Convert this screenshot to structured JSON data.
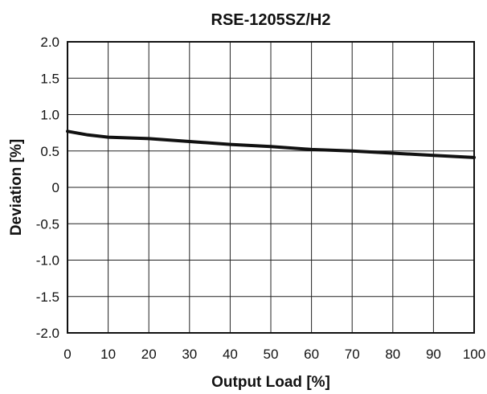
{
  "chart_data": {
    "type": "line",
    "title": "RSE-1205SZ/H2",
    "xlabel": "Output Load [%]",
    "ylabel": "Deviation [%]",
    "xlim": [
      0,
      100
    ],
    "ylim": [
      -2.0,
      2.0
    ],
    "x_ticks": [
      "0",
      "10",
      "20",
      "30",
      "40",
      "50",
      "60",
      "70",
      "80",
      "90",
      "100"
    ],
    "y_ticks": [
      "2.0",
      "1.5",
      "1.0",
      "0.5",
      "0",
      "-0.5",
      "-1.0",
      "-1.5",
      "-2.0"
    ],
    "grid": true,
    "series": [
      {
        "x": [
          0,
          5,
          10,
          20,
          30,
          40,
          50,
          60,
          70,
          80,
          90,
          100
        ],
        "values": [
          0.77,
          0.72,
          0.69,
          0.67,
          0.63,
          0.59,
          0.56,
          0.52,
          0.5,
          0.47,
          0.44,
          0.41
        ]
      }
    ]
  }
}
